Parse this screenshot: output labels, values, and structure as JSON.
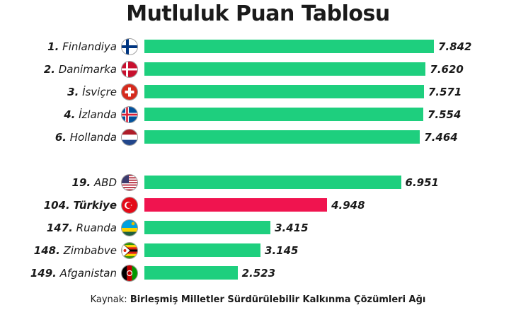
{
  "chart_data": {
    "type": "bar",
    "orientation": "horizontal",
    "title": "Mutluluk Puan Tablosu",
    "source_label": "Kaynak:",
    "source_name": "Birleşmiş Milletler Sürdürülebilir Kalkınma Çözümleri Ağı",
    "rows": [
      {
        "rank": "1.",
        "name": "Finlandiya",
        "value": 7.842,
        "value_label": "7.842",
        "flag": "finland-flag-icon",
        "highlight": false
      },
      {
        "rank": "2.",
        "name": "Danimarka",
        "value": 7.62,
        "value_label": "7.620",
        "flag": "denmark-flag-icon",
        "highlight": false
      },
      {
        "rank": "3.",
        "name": "İsviçre",
        "value": 7.571,
        "value_label": "7.571",
        "flag": "switzerland-flag-icon",
        "highlight": false
      },
      {
        "rank": "4.",
        "name": "İzlanda",
        "value": 7.554,
        "value_label": "7.554",
        "flag": "iceland-flag-icon",
        "highlight": false
      },
      {
        "rank": "6.",
        "name": "Hollanda",
        "value": 7.464,
        "value_label": "7.464",
        "flag": "netherlands-flag-icon",
        "highlight": false
      },
      {
        "rank": "19.",
        "name": "ABD",
        "value": 6.951,
        "value_label": "6.951",
        "flag": "usa-flag-icon",
        "highlight": false
      },
      {
        "rank": "104.",
        "name": "Türkiye",
        "value": 4.948,
        "value_label": "4.948",
        "flag": "turkey-flag-icon",
        "highlight": true
      },
      {
        "rank": "147.",
        "name": "Ruanda",
        "value": 3.415,
        "value_label": "3.415",
        "flag": "rwanda-flag-icon",
        "highlight": false
      },
      {
        "rank": "148.",
        "name": "Zimbabve",
        "value": 3.145,
        "value_label": "3.145",
        "flag": "zimbabwe-flag-icon",
        "highlight": false
      },
      {
        "rank": "149.",
        "name": "Afganistan",
        "value": 2.523,
        "value_label": "2.523",
        "flag": "afghanistan-flag-icon",
        "highlight": false
      }
    ],
    "colors": {
      "bar": "#1ecf7e",
      "highlight": "#f0144f"
    }
  }
}
